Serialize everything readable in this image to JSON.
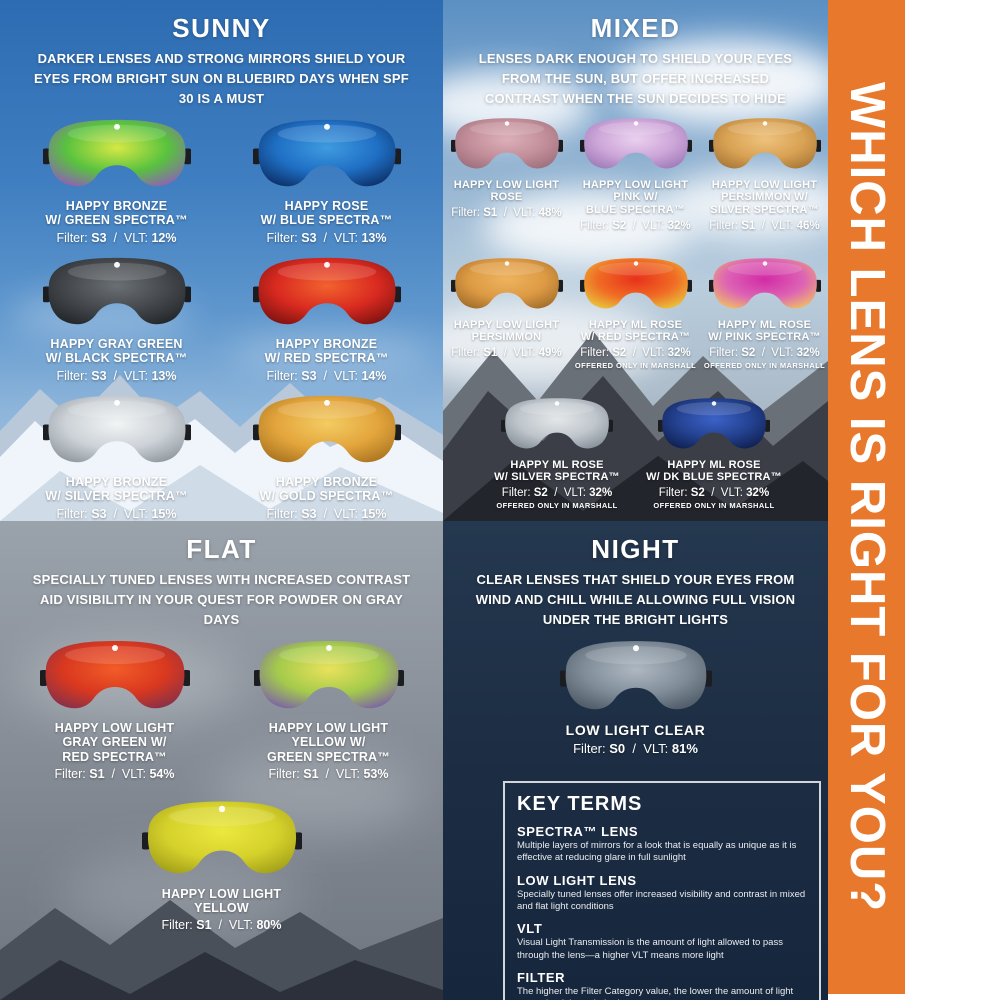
{
  "sidebar": {
    "title": "WHICH LENS IS RIGHT FOR YOU?",
    "bg_color": "#E8782C"
  },
  "labels": {
    "filter": "Filter:",
    "vlt": "VLT:",
    "separator": "/"
  },
  "sections": {
    "sunny": {
      "title": "SUNNY",
      "description": "DARKER LENSES AND STRONG MIRRORS SHIELD YOUR EYES FROM BRIGHT SUN ON BLUEBIRD DAYS WHEN SPF 30 IS A MUST",
      "lenses": [
        {
          "name_lines": [
            "HAPPY BRONZE",
            "W/ GREEN SPECTRA™"
          ],
          "filter": "S3",
          "vlt": "12%",
          "colors": [
            "#d6e845",
            "#59c23e",
            "#8e5fb8"
          ]
        },
        {
          "name_lines": [
            "HAPPY ROSE",
            "W/ BLUE SPECTRA™"
          ],
          "filter": "S3",
          "vlt": "13%",
          "colors": [
            "#3f9be0",
            "#1f6fc4",
            "#0c2f66"
          ]
        },
        {
          "name_lines": [
            "HAPPY GRAY GREEN",
            "W/ BLACK SPECTRA™"
          ],
          "filter": "S3",
          "vlt": "13%",
          "colors": [
            "#6a6f73",
            "#44484c",
            "#222528"
          ]
        },
        {
          "name_lines": [
            "HAPPY BRONZE",
            "W/ RED SPECTRA™"
          ],
          "filter": "S3",
          "vlt": "14%",
          "colors": [
            "#f2622e",
            "#d92a20",
            "#7c1210"
          ]
        },
        {
          "name_lines": [
            "HAPPY BRONZE",
            "W/ SILVER SPECTRA™"
          ],
          "filter": "S3",
          "vlt": "15%",
          "colors": [
            "#f2f4f5",
            "#ccd2d7",
            "#8f979e"
          ]
        },
        {
          "name_lines": [
            "HAPPY BRONZE",
            "W/ GOLD SPECTRA™"
          ],
          "filter": "S3",
          "vlt": "15%",
          "colors": [
            "#f3cc62",
            "#e3a53c",
            "#a9731f"
          ]
        }
      ]
    },
    "mixed": {
      "title": "MIXED",
      "description": "LENSES DARK ENOUGH TO SHIELD YOUR EYES FROM THE SUN, BUT OFFER INCREASED CONTRAST WHEN THE SUN DECIDES TO HIDE",
      "lenses": [
        {
          "name_lines": [
            "HAPPY LOW LIGHT",
            "ROSE"
          ],
          "filter": "S1",
          "vlt": "48%",
          "colors": [
            "#dcb0b8",
            "#c28e99",
            "#9c6f7c"
          ]
        },
        {
          "name_lines": [
            "HAPPY LOW LIGHT",
            "PINK W/",
            "BLUE SPECTRA™"
          ],
          "filter": "S2",
          "vlt": "32%",
          "colors": [
            "#ead0ef",
            "#cda6d8",
            "#9d7ab8"
          ]
        },
        {
          "name_lines": [
            "HAPPY LOW LIGHT",
            "PERSIMMON W/",
            "SILVER SPECTRA™"
          ],
          "filter": "S1",
          "vlt": "46%",
          "colors": [
            "#eec27c",
            "#d9a254",
            "#a87838"
          ]
        },
        {
          "name_lines": [
            "HAPPY LOW LIGHT",
            "PERSIMMON"
          ],
          "filter": "S1",
          "vlt": "49%",
          "colors": [
            "#eeb35e",
            "#dd9a44",
            "#a06c2a"
          ]
        },
        {
          "name_lines": [
            "HAPPY ML ROSE",
            "W/ RED SPECTRA™"
          ],
          "filter": "S2",
          "vlt": "32%",
          "note": "OFFERED ONLY IN MARSHALL",
          "colors": [
            "#e8311c",
            "#f06c24",
            "#e8c83e"
          ]
        },
        {
          "name_lines": [
            "HAPPY ML ROSE",
            "W/ PINK SPECTRA™"
          ],
          "filter": "S2",
          "vlt": "32%",
          "note": "OFFERED ONLY IN MARSHALL",
          "colors": [
            "#d22ba6",
            "#dd63b4",
            "#eec066"
          ]
        },
        {
          "name_lines": [
            "HAPPY ML ROSE",
            "W/ SILVER SPECTRA™"
          ],
          "filter": "S2",
          "vlt": "32%",
          "note": "OFFERED ONLY IN MARSHALL",
          "colors": [
            "#e4e7e9",
            "#bfc6cc",
            "#868f98"
          ]
        },
        {
          "name_lines": [
            "HAPPY ML ROSE",
            "W/ DK BLUE SPECTRA™"
          ],
          "filter": "S2",
          "vlt": "32%",
          "note": "OFFERED ONLY IN MARSHALL",
          "colors": [
            "#3c62c8",
            "#23418f",
            "#101f4e"
          ]
        }
      ]
    },
    "flat": {
      "title": "FLAT",
      "description": "SPECIALLY TUNED LENSES WITH INCREASED CONTRAST AID VISIBILITY IN YOUR QUEST FOR POWDER ON GRAY DAYS",
      "lenses": [
        {
          "name_lines": [
            "HAPPY LOW LIGHT",
            "GRAY GREEN W/",
            "RED SPECTRA™"
          ],
          "filter": "S1",
          "vlt": "54%",
          "colors": [
            "#f25c28",
            "#d9381f",
            "#84304a"
          ]
        },
        {
          "name_lines": [
            "HAPPY LOW LIGHT",
            "YELLOW W/",
            "GREEN SPECTRA™"
          ],
          "filter": "S1",
          "vlt": "53%",
          "colors": [
            "#e9e25a",
            "#a4ca4c",
            "#7a61a8"
          ]
        },
        {
          "name_lines": [
            "HAPPY LOW LIGHT",
            "YELLOW"
          ],
          "filter": "S1",
          "vlt": "80%",
          "colors": [
            "#ebe83f",
            "#d6d22c",
            "#a19e18"
          ]
        }
      ]
    },
    "night": {
      "title": "NIGHT",
      "description": "CLEAR LENSES THAT SHIELD YOUR EYES FROM WIND AND CHILL WHILE ALLOWING FULL VISION UNDER THE BRIGHT LIGHTS",
      "lenses": [
        {
          "name_lines": [
            "LOW LIGHT CLEAR"
          ],
          "filter": "S0",
          "vlt": "81%",
          "colors": [
            "#aeb8c2",
            "#808d99",
            "#4c5864"
          ]
        }
      ]
    }
  },
  "key_terms": {
    "title": "KEY TERMS",
    "terms": [
      {
        "name": "SPECTRA™ LENS",
        "definition": "Multiple layers of mirrors for a look that is equally as unique as it is effective at reducing glare in full sunlight"
      },
      {
        "name": "LOW LIGHT LENS",
        "definition": "Specially tuned lenses offer increased visibility and contrast in mixed and flat light conditions"
      },
      {
        "name": "VLT",
        "definition": "Visual Light Transmission is the amount of light allowed to pass through the lens—a higher VLT means more light"
      },
      {
        "name": "FILTER",
        "definition": "The higher the Filter Category value, the lower the amount of light transmitted through the lens"
      }
    ]
  }
}
